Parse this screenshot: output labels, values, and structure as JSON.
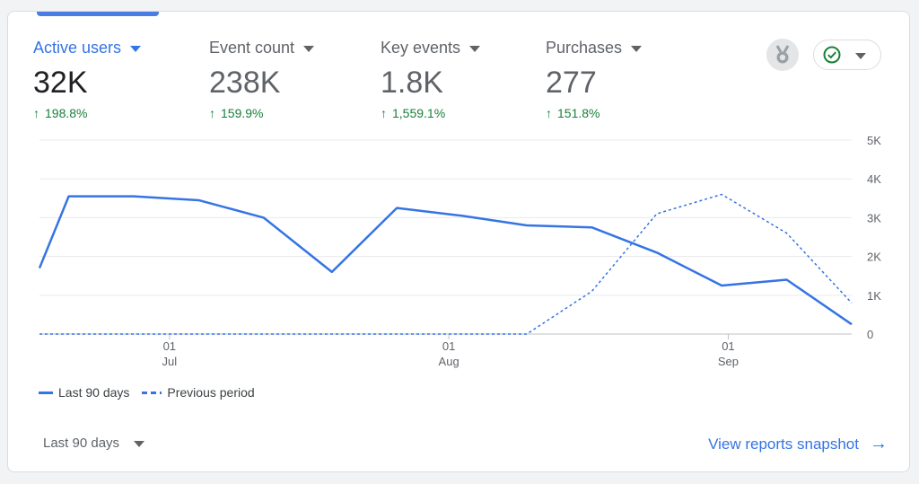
{
  "metrics": [
    {
      "label": "Active users",
      "value": "32K",
      "change": "198.8%"
    },
    {
      "label": "Event count",
      "value": "238K",
      "change": "159.9%"
    },
    {
      "label": "Key events",
      "value": "1.8K",
      "change": "1,559.1%"
    },
    {
      "label": "Purchases",
      "value": "277",
      "change": "151.8%"
    }
  ],
  "icons": {
    "medal": "medal-icon",
    "check": "check-circle-icon",
    "arrow": "arrow-right-icon"
  },
  "colors": {
    "accent": "#3574e3",
    "positive": "#188038"
  },
  "chart_data": {
    "type": "line",
    "ylim": [
      0,
      5000
    ],
    "yticks": [
      "0",
      "1K",
      "2K",
      "3K",
      "4K",
      "5K"
    ],
    "x_ticks": [
      {
        "day": "01",
        "month": "Jul",
        "index": 2
      },
      {
        "day": "01",
        "month": "Aug",
        "index": 6.3
      },
      {
        "day": "01",
        "month": "Sep",
        "index": 10.6
      }
    ],
    "series": [
      {
        "name": "Last 90 days",
        "style": "solid",
        "values": [
          1700,
          3550,
          3550,
          3450,
          3000,
          1600,
          3250,
          3050,
          2800,
          2750,
          2100,
          1250,
          1400,
          250
        ],
        "x": [
          0,
          0.45,
          1.45,
          2.45,
          3.45,
          4.5,
          5.5,
          6.5,
          7.5,
          8.5,
          9.5,
          10.5,
          11.5,
          12.5
        ]
      },
      {
        "name": "Previous period",
        "style": "dashed",
        "values": [
          0,
          0,
          0,
          0,
          0,
          0,
          0,
          0,
          0,
          1100,
          3100,
          3600,
          2600,
          800
        ],
        "x": [
          0,
          1,
          2,
          3,
          4,
          5,
          6,
          7,
          7.5,
          8.5,
          9.5,
          10.5,
          11.5,
          12.5
        ]
      }
    ]
  },
  "legend": {
    "current": "Last 90 days",
    "previous": "Previous period"
  },
  "range_select": {
    "label": "Last 90 days"
  },
  "view_link": {
    "label": "View reports snapshot"
  }
}
